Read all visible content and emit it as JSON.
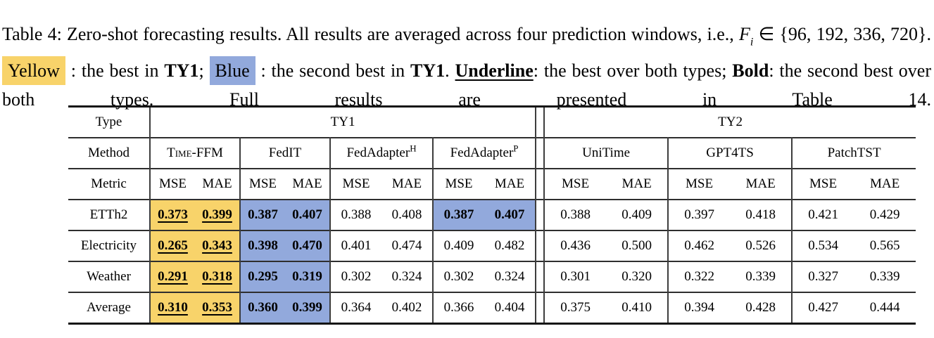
{
  "caption": {
    "segments": [
      {
        "text": "Table 4: Zero-shot forecasting results. All results are averaged across four prediction windows, i.e., ",
        "style": "plain"
      },
      {
        "text": "F",
        "style": "math-var"
      },
      {
        "text": "i",
        "style": "math-sub"
      },
      {
        "text": " ∈ {96, 192, 336, 720}. ",
        "style": "plain"
      },
      {
        "text": "Yellow",
        "style": "hl-yellow"
      },
      {
        "text": " : the best in ",
        "style": "plain"
      },
      {
        "text": "TY1",
        "style": "bold"
      },
      {
        "text": "; ",
        "style": "plain"
      },
      {
        "text": "Blue",
        "style": "hl-blue"
      },
      {
        "text": " : the second best in ",
        "style": "plain"
      },
      {
        "text": "TY1",
        "style": "bold"
      },
      {
        "text": ". ",
        "style": "plain"
      },
      {
        "text": "Underline",
        "style": "bold-underline"
      },
      {
        "text": ": the best over both types; ",
        "style": "plain"
      },
      {
        "text": "Bold",
        "style": "bold"
      },
      {
        "text": ": the second best over both types. Full results are presented in Table 14.",
        "style": "plain"
      }
    ]
  },
  "table": {
    "row_header_labels": [
      "Type",
      "Method",
      "Metric"
    ],
    "type_headers": [
      "TY1",
      "TY2"
    ],
    "methods": [
      {
        "label": "Time-FFM",
        "smallcaps": true
      },
      {
        "label": "FedIT"
      },
      {
        "label": "FedAdapter",
        "sup": "H"
      },
      {
        "label": "FedAdapter",
        "sup": "P"
      },
      {
        "label": "UniTime"
      },
      {
        "label": "GPT4TS"
      },
      {
        "label": "PatchTST"
      }
    ],
    "metric_labels": [
      "MSE",
      "MAE"
    ],
    "rows": [
      {
        "dataset": "ETTh2",
        "values": [
          "0.373",
          "0.399",
          "0.387",
          "0.407",
          "0.388",
          "0.408",
          "0.387",
          "0.407",
          "0.388",
          "0.409",
          "0.397",
          "0.418",
          "0.421",
          "0.429"
        ],
        "highlights": [
          "y",
          "y",
          "b",
          "b",
          "",
          "",
          "b",
          "b",
          "",
          "",
          "",
          "",
          "",
          ""
        ]
      },
      {
        "dataset": "Electricity",
        "values": [
          "0.265",
          "0.343",
          "0.398",
          "0.470",
          "0.401",
          "0.474",
          "0.409",
          "0.482",
          "0.436",
          "0.500",
          "0.462",
          "0.526",
          "0.534",
          "0.565"
        ],
        "highlights": [
          "y",
          "y",
          "b",
          "b",
          "",
          "",
          "",
          "",
          "",
          "",
          "",
          "",
          "",
          ""
        ]
      },
      {
        "dataset": "Weather",
        "values": [
          "0.291",
          "0.318",
          "0.295",
          "0.319",
          "0.302",
          "0.324",
          "0.302",
          "0.324",
          "0.301",
          "0.320",
          "0.322",
          "0.339",
          "0.327",
          "0.339"
        ],
        "highlights": [
          "y",
          "y",
          "b",
          "b",
          "",
          "",
          "",
          "",
          "",
          "",
          "",
          "",
          "",
          ""
        ]
      },
      {
        "dataset": "Average",
        "values": [
          "0.310",
          "0.353",
          "0.360",
          "0.399",
          "0.364",
          "0.402",
          "0.366",
          "0.404",
          "0.375",
          "0.410",
          "0.394",
          "0.428",
          "0.427",
          "0.444"
        ],
        "highlights": [
          "y",
          "y",
          "b",
          "b",
          "",
          "",
          "",
          "",
          "",
          "",
          "",
          "",
          "",
          ""
        ]
      }
    ],
    "legend_colors": {
      "yellow": "#f8d36a",
      "blue": "#92a9dc"
    }
  }
}
